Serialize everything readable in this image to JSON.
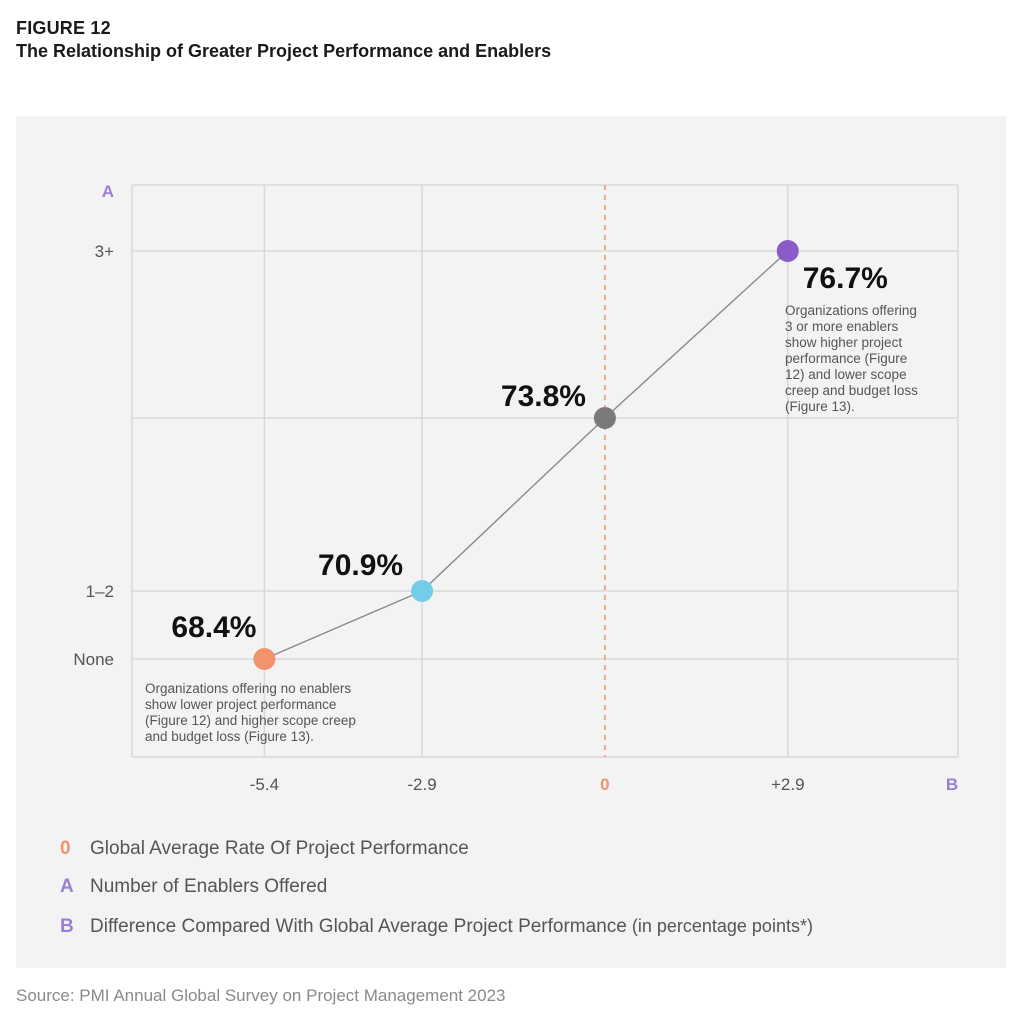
{
  "figure": {
    "label": "FIGURE 12",
    "title": "The Relationship of Greater Project Performance and Enablers"
  },
  "colors": {
    "panel": "#f3f3f3",
    "grid": "#d9d9d9",
    "line": "#8a8a8a",
    "accent_orange": "#f2936b",
    "accent_purple": "#9b7fd0",
    "point_none": "#f2936b",
    "point_1_2": "#74cde8",
    "point_zero": "#7a7a7a",
    "point_3plus": "#8a5cc9"
  },
  "chart_data": {
    "type": "line",
    "y_axis_key": "A",
    "x_axis_key": "B",
    "y_categories": [
      "None",
      "1–2",
      "",
      "3+"
    ],
    "x_ticks": [
      "-5.4",
      "-2.9",
      "0",
      "+2.9"
    ],
    "x_tick_values": [
      -5.4,
      -2.9,
      0,
      2.9
    ],
    "xlim": [
      -7.5,
      5.6
    ],
    "reference_line_x": 0,
    "grid": true,
    "points": [
      {
        "x": -5.4,
        "y_index": 0,
        "label": "68.4%",
        "color": "#f2936b"
      },
      {
        "x": -2.9,
        "y_index": 1,
        "label": "70.9%",
        "color": "#74cde8"
      },
      {
        "x": 0,
        "y_index": 2,
        "label": "73.8%",
        "color": "#7a7a7a"
      },
      {
        "x": 2.9,
        "y_index": 3,
        "label": "76.7%",
        "color": "#8a5cc9"
      }
    ],
    "annotations": [
      {
        "anchor": "None",
        "lines": [
          "Organizations offering no enablers",
          "show lower project performance",
          "(Figure 12) and higher scope creep",
          "and budget loss (Figure 13)."
        ]
      },
      {
        "anchor": "3+",
        "lines": [
          "Organizations offering",
          "3 or more enablers",
          "show higher project",
          "performance (Figure",
          "12) and lower scope",
          "creep and budget loss",
          "(Figure 13)."
        ]
      }
    ]
  },
  "legend": [
    {
      "key": "0",
      "text": "Global Average Rate Of Project Performance",
      "sub": ""
    },
    {
      "key": "A",
      "text": "Number of Enablers Offered",
      "sub": ""
    },
    {
      "key": "B",
      "text": "Difference Compared With Global Average Project Performance",
      "sub": " (in percentage points*)"
    }
  ],
  "source": "Source: PMI Annual Global Survey on Project Management 2023"
}
